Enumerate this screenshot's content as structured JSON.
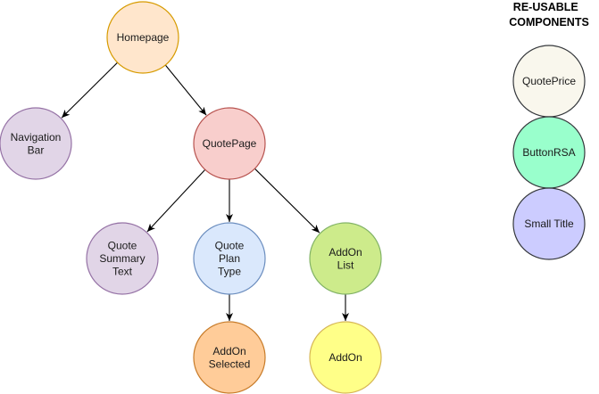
{
  "diagram": {
    "heading": [
      "RE-USABLE",
      "COMPONENTS"
    ],
    "nodes": [
      {
        "id": "homepage",
        "lines": [
          "Homepage"
        ],
        "fill": "#ffe6cc",
        "stroke": "#d79b00"
      },
      {
        "id": "navigation-bar",
        "lines": [
          "Navigation",
          "Bar"
        ],
        "fill": "#e1d5e7",
        "stroke": "#9673a6"
      },
      {
        "id": "quotepage",
        "lines": [
          "QuotePage"
        ],
        "fill": "#f8cecc",
        "stroke": "#b85450"
      },
      {
        "id": "quote-summary-text",
        "lines": [
          "Quote",
          "Summary",
          "Text"
        ],
        "fill": "#e1d5e7",
        "stroke": "#9673a6"
      },
      {
        "id": "quote-plan-type",
        "lines": [
          "Quote",
          "Plan",
          "Type"
        ],
        "fill": "#dae8fc",
        "stroke": "#6c8ebf"
      },
      {
        "id": "addon-list",
        "lines": [
          "AddOn",
          "List"
        ],
        "fill": "#cdeb8b",
        "stroke": "#82b366"
      },
      {
        "id": "addon-selected",
        "lines": [
          "AddOn",
          "Selected"
        ],
        "fill": "#ffcc99",
        "stroke": "#c87c2a"
      },
      {
        "id": "addon",
        "lines": [
          "AddOn"
        ],
        "fill": "#ffff88",
        "stroke": "#d6b656"
      },
      {
        "id": "quoteprice",
        "lines": [
          "QuotePrice"
        ],
        "fill": "#f9f7ed",
        "stroke": "#36393d"
      },
      {
        "id": "buttonrsa",
        "lines": [
          "ButtonRSA"
        ],
        "fill": "#99ffcc",
        "stroke": "#36393d"
      },
      {
        "id": "small-title",
        "lines": [
          "Small Title"
        ],
        "fill": "#ccccff",
        "stroke": "#36393d"
      }
    ],
    "edges": [
      {
        "from": "homepage",
        "to": "navigation-bar"
      },
      {
        "from": "homepage",
        "to": "quotepage"
      },
      {
        "from": "quotepage",
        "to": "quote-summary-text"
      },
      {
        "from": "quotepage",
        "to": "quote-plan-type"
      },
      {
        "from": "quotepage",
        "to": "addon-list"
      },
      {
        "from": "quote-plan-type",
        "to": "addon-selected"
      },
      {
        "from": "addon-list",
        "to": "addon"
      }
    ]
  }
}
